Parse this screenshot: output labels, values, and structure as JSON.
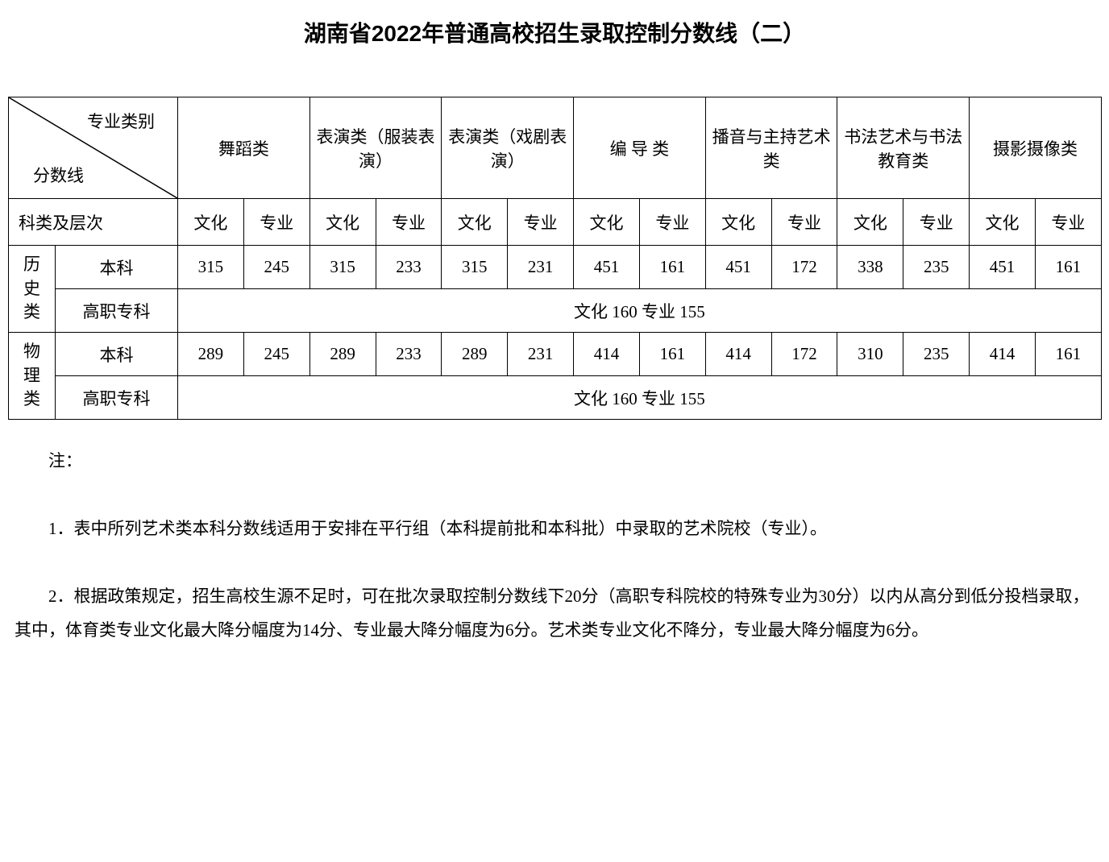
{
  "title": "湖南省2022年普通高校招生录取控制分数线（二）",
  "title_fontsize": 28,
  "body_fontsize": 21,
  "text_color": "#000000",
  "background_color": "#ffffff",
  "border_color": "#000000",
  "header": {
    "diag_top": "专业类别",
    "diag_bottom": "分数线",
    "sub_left": "科类及层次",
    "categories": [
      "舞蹈类",
      "表演类（服装表演）",
      "表演类（戏剧表演）",
      "编 导 类",
      "播音与主持艺术类",
      "书法艺术与书法教育类",
      "摄影摄像类"
    ],
    "sub_labels": [
      "文化",
      "专业"
    ]
  },
  "rows": {
    "history_label": "历史类",
    "physics_label": "物理类",
    "benke_label": "本科",
    "gaozhi_label": "高职专科",
    "history_benke": [
      "315",
      "245",
      "315",
      "233",
      "315",
      "231",
      "451",
      "161",
      "451",
      "172",
      "338",
      "235",
      "451",
      "161"
    ],
    "physics_benke": [
      "289",
      "245",
      "289",
      "233",
      "289",
      "231",
      "414",
      "161",
      "414",
      "172",
      "310",
      "235",
      "414",
      "161"
    ],
    "gaozhi_merged": "文化 160   专业 155"
  },
  "notes": {
    "label": "注：",
    "n1": "1．表中所列艺术类本科分数线适用于安排在平行组（本科提前批和本科批）中录取的艺术院校（专业）。",
    "n2": "2．根据政策规定，招生高校生源不足时，可在批次录取控制分数线下20分（高职专科院校的特殊专业为30分）以内从高分到低分投档录取，其中，体育类专业文化最大降分幅度为14分、专业最大降分幅度为6分。艺术类专业文化不降分，专业最大降分幅度为6分。"
  }
}
